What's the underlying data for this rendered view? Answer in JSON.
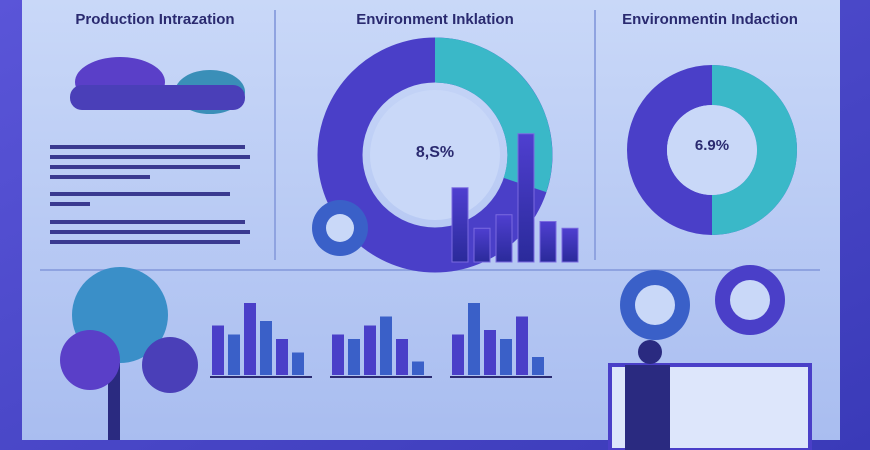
{
  "panels": [
    {
      "title": "Production Intrazation"
    },
    {
      "title": "Environment Inklation",
      "donut_label": "8,S%"
    },
    {
      "title": "Environmentin Indaction",
      "donut_label": "6.9%"
    }
  ],
  "center_bars": [
    55,
    25,
    35,
    95,
    30,
    25
  ],
  "bar_groups": [
    [
      55,
      45,
      80,
      60,
      40,
      25
    ],
    [
      45,
      40,
      55,
      65,
      40,
      15
    ],
    [
      45,
      80,
      50,
      40,
      65,
      20
    ]
  ]
}
